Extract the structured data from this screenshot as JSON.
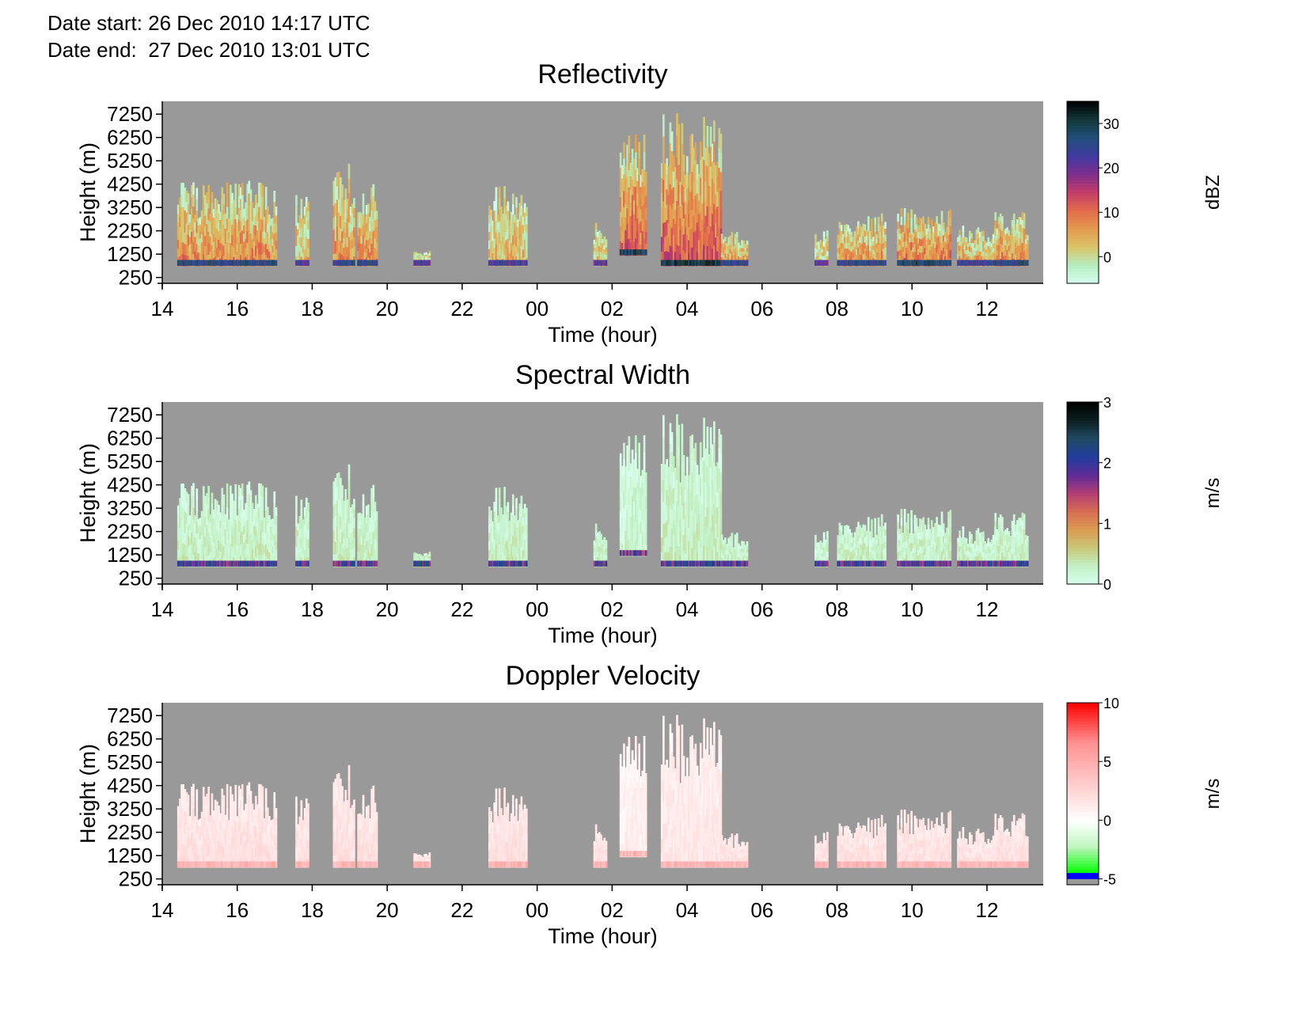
{
  "header": {
    "date_start": "Date start: 26 Dec 2010 14:17 UTC",
    "date_end": "Date end:  27 Dec 2010 13:01 UTC"
  },
  "colors": {
    "missing_background": "#999999",
    "reflectivity_scale": [
      "#d6fff0",
      "#b5ecbf",
      "#d9c46a",
      "#e49a4e",
      "#e36b4b",
      "#c43d6a",
      "#7e2e8c",
      "#3f3aa0",
      "#204f7a",
      "#133838",
      "#000000"
    ],
    "spectral_width_scale": [
      "#d9ffee",
      "#c2f0c4",
      "#c9c777",
      "#d99b52",
      "#d86c52",
      "#b03d74",
      "#5e2c97",
      "#1f3e9d",
      "#214b63",
      "#0c1f20",
      "#000000"
    ],
    "doppler_velocity_scale": [
      "#999999",
      "#0000ff",
      "#00ff00",
      "#a9f7a9",
      "#ffffff",
      "#ffbdbd",
      "#ff8080",
      "#ff0000"
    ]
  },
  "chart_data": [
    {
      "type": "heatmap",
      "title": "Reflectivity",
      "xlabel": "Time (hour)",
      "ylabel": "Height (m)",
      "x_tick_labels": [
        "14",
        "16",
        "18",
        "20",
        "22",
        "00",
        "02",
        "04",
        "06",
        "08",
        "10",
        "12"
      ],
      "x_tick_hours": [
        14,
        16,
        18,
        20,
        22,
        24,
        26,
        28,
        30,
        32,
        34,
        36
      ],
      "y_tick_labels": [
        "7250",
        "6250",
        "5250",
        "4250",
        "3250",
        "2250",
        "1250",
        "250"
      ],
      "y_tick_values": [
        7250,
        6250,
        5250,
        4250,
        3250,
        2250,
        1250,
        250
      ],
      "xlim": [
        14,
        37.5
      ],
      "ylim": [
        0,
        7800
      ],
      "colorbar": {
        "label": "dBZ",
        "ticks": [
          "30",
          "20",
          "10",
          "0"
        ],
        "tick_values": [
          30,
          20,
          10,
          0
        ],
        "range": [
          -6,
          35
        ]
      },
      "grid": false,
      "cloud_segments": [
        {
          "start": 14.4,
          "end": 17.05,
          "base": 750,
          "top": 4400,
          "dominant": 9
        },
        {
          "start": 17.55,
          "end": 17.9,
          "base": 750,
          "top": 3800,
          "dominant": 5
        },
        {
          "start": 18.55,
          "end": 19.1,
          "base": 750,
          "top": 5200,
          "dominant": 8
        },
        {
          "start": 19.2,
          "end": 19.7,
          "base": 750,
          "top": 4300,
          "dominant": 9
        },
        {
          "start": 20.7,
          "end": 21.15,
          "base": 750,
          "top": 1400,
          "dominant": 4
        },
        {
          "start": 22.7,
          "end": 23.7,
          "base": 750,
          "top": 4200,
          "dominant": 5
        },
        {
          "start": 25.5,
          "end": 25.85,
          "base": 750,
          "top": 2700,
          "dominant": 4
        },
        {
          "start": 26.2,
          "end": 26.9,
          "base": 1200,
          "top": 6400,
          "dominant": 12
        },
        {
          "start": 27.3,
          "end": 28.9,
          "base": 750,
          "top": 7300,
          "dominant": 13
        },
        {
          "start": 28.9,
          "end": 29.6,
          "base": 750,
          "top": 2200,
          "dominant": 8
        },
        {
          "start": 31.4,
          "end": 31.75,
          "base": 750,
          "top": 2500,
          "dominant": 3
        },
        {
          "start": 32.0,
          "end": 33.3,
          "base": 750,
          "top": 3000,
          "dominant": 8
        },
        {
          "start": 33.6,
          "end": 35.0,
          "base": 750,
          "top": 3300,
          "dominant": 11
        },
        {
          "start": 35.2,
          "end": 36.2,
          "base": 750,
          "top": 2500,
          "dominant": 7
        },
        {
          "start": 36.2,
          "end": 37.1,
          "base": 750,
          "top": 3100,
          "dominant": 9
        }
      ]
    },
    {
      "type": "heatmap",
      "title": "Spectral Width",
      "xlabel": "Time (hour)",
      "ylabel": "Height (m)",
      "x_tick_labels": [
        "14",
        "16",
        "18",
        "20",
        "22",
        "00",
        "02",
        "04",
        "06",
        "08",
        "10",
        "12"
      ],
      "x_tick_hours": [
        14,
        16,
        18,
        20,
        22,
        24,
        26,
        28,
        30,
        32,
        34,
        36
      ],
      "y_tick_labels": [
        "7250",
        "6250",
        "5250",
        "4250",
        "3250",
        "2250",
        "1250",
        "250"
      ],
      "y_tick_values": [
        7250,
        6250,
        5250,
        4250,
        3250,
        2250,
        1250,
        250
      ],
      "xlim": [
        14,
        37.5
      ],
      "ylim": [
        0,
        7800
      ],
      "colorbar": {
        "label": "m/s",
        "ticks": [
          "3",
          "2",
          "1",
          "0"
        ],
        "tick_values": [
          3,
          2,
          1,
          0
        ],
        "range": [
          0,
          3
        ]
      },
      "grid": false,
      "cloud_segments": [
        {
          "start": 14.4,
          "end": 17.05,
          "base": 750,
          "top": 4400,
          "dominant": 0.3
        },
        {
          "start": 17.55,
          "end": 17.9,
          "base": 750,
          "top": 3800,
          "dominant": 0.3
        },
        {
          "start": 18.55,
          "end": 19.1,
          "base": 750,
          "top": 5200,
          "dominant": 0.3
        },
        {
          "start": 19.2,
          "end": 19.7,
          "base": 750,
          "top": 4300,
          "dominant": 0.3
        },
        {
          "start": 20.7,
          "end": 21.15,
          "base": 750,
          "top": 1400,
          "dominant": 0.4
        },
        {
          "start": 22.7,
          "end": 23.7,
          "base": 750,
          "top": 4200,
          "dominant": 0.3
        },
        {
          "start": 25.5,
          "end": 25.85,
          "base": 750,
          "top": 2700,
          "dominant": 0.3
        },
        {
          "start": 26.2,
          "end": 26.9,
          "base": 1200,
          "top": 6400,
          "dominant": 0.2
        },
        {
          "start": 27.3,
          "end": 28.9,
          "base": 750,
          "top": 7300,
          "dominant": 0.3
        },
        {
          "start": 28.9,
          "end": 29.6,
          "base": 750,
          "top": 2200,
          "dominant": 0.3
        },
        {
          "start": 31.4,
          "end": 31.75,
          "base": 750,
          "top": 2500,
          "dominant": 0.2
        },
        {
          "start": 32.0,
          "end": 33.3,
          "base": 750,
          "top": 3000,
          "dominant": 0.3
        },
        {
          "start": 33.6,
          "end": 35.0,
          "base": 750,
          "top": 3300,
          "dominant": 0.3
        },
        {
          "start": 35.2,
          "end": 36.2,
          "base": 750,
          "top": 2500,
          "dominant": 0.3
        },
        {
          "start": 36.2,
          "end": 37.1,
          "base": 750,
          "top": 3100,
          "dominant": 0.3
        }
      ]
    },
    {
      "type": "heatmap",
      "title": "Doppler Velocity",
      "xlabel": "Time (hour)",
      "ylabel": "Height (m)",
      "x_tick_labels": [
        "14",
        "16",
        "18",
        "20",
        "22",
        "00",
        "02",
        "04",
        "06",
        "08",
        "10",
        "12"
      ],
      "x_tick_hours": [
        14,
        16,
        18,
        20,
        22,
        24,
        26,
        28,
        30,
        32,
        34,
        36
      ],
      "y_tick_labels": [
        "7250",
        "6250",
        "5250",
        "4250",
        "3250",
        "2250",
        "1250",
        "250"
      ],
      "y_tick_values": [
        7250,
        6250,
        5250,
        4250,
        3250,
        2250,
        1250,
        250
      ],
      "xlim": [
        14,
        37.5
      ],
      "ylim": [
        0,
        7800
      ],
      "colorbar": {
        "label": "m/s",
        "ticks": [
          "10",
          "5",
          "0",
          "-5"
        ],
        "tick_values": [
          10,
          5,
          0,
          -5
        ],
        "range": [
          -5.5,
          10
        ]
      },
      "grid": false,
      "cloud_segments": [
        {
          "start": 14.4,
          "end": 17.05,
          "base": 750,
          "top": 4400,
          "dominant": 2
        },
        {
          "start": 17.55,
          "end": 17.9,
          "base": 750,
          "top": 3800,
          "dominant": 2
        },
        {
          "start": 18.55,
          "end": 19.1,
          "base": 750,
          "top": 5200,
          "dominant": 2
        },
        {
          "start": 19.2,
          "end": 19.7,
          "base": 750,
          "top": 4300,
          "dominant": 2
        },
        {
          "start": 20.7,
          "end": 21.15,
          "base": 750,
          "top": 1400,
          "dominant": 2
        },
        {
          "start": 22.7,
          "end": 23.7,
          "base": 750,
          "top": 4200,
          "dominant": 2
        },
        {
          "start": 25.5,
          "end": 25.85,
          "base": 750,
          "top": 2700,
          "dominant": 2
        },
        {
          "start": 26.2,
          "end": 26.9,
          "base": 1200,
          "top": 6400,
          "dominant": 1
        },
        {
          "start": 27.3,
          "end": 28.9,
          "base": 750,
          "top": 7300,
          "dominant": 1.5
        },
        {
          "start": 28.9,
          "end": 29.6,
          "base": 750,
          "top": 2200,
          "dominant": 2
        },
        {
          "start": 31.4,
          "end": 31.75,
          "base": 750,
          "top": 2500,
          "dominant": 2
        },
        {
          "start": 32.0,
          "end": 33.3,
          "base": 750,
          "top": 3000,
          "dominant": 2
        },
        {
          "start": 33.6,
          "end": 35.0,
          "base": 750,
          "top": 3300,
          "dominant": 2
        },
        {
          "start": 35.2,
          "end": 36.2,
          "base": 750,
          "top": 2500,
          "dominant": 2
        },
        {
          "start": 36.2,
          "end": 37.1,
          "base": 750,
          "top": 3100,
          "dominant": 2
        }
      ]
    }
  ]
}
